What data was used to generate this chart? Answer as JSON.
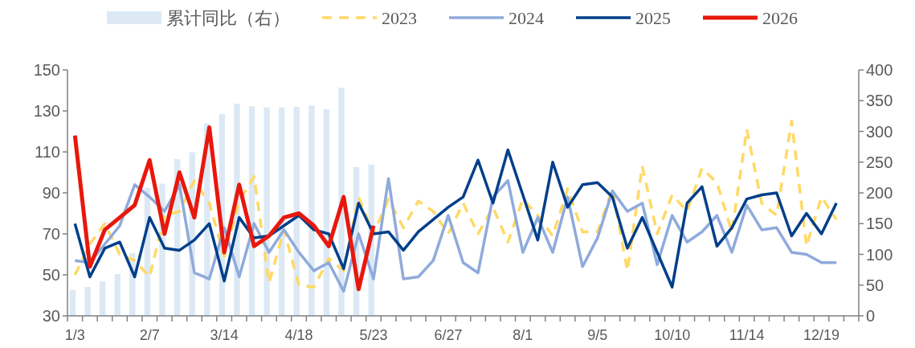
{
  "chart_data": {
    "type": "line",
    "categories": [
      "1/3",
      null,
      null,
      null,
      null,
      "2/7",
      null,
      null,
      null,
      null,
      "3/14",
      null,
      null,
      null,
      null,
      "4/18",
      null,
      null,
      null,
      null,
      "5/23",
      null,
      null,
      null,
      null,
      "6/27",
      null,
      null,
      null,
      null,
      "8/1",
      null,
      null,
      null,
      null,
      "9/5",
      null,
      null,
      null,
      null,
      "10/10",
      null,
      null,
      null,
      null,
      "11/14",
      null,
      null,
      null,
      null,
      "12/19",
      null,
      null
    ],
    "series": [
      {
        "name": "累计同比（右）",
        "type": "bar",
        "axis": "y2",
        "color": "#dce9f5",
        "values": [
          42,
          47,
          56,
          68,
          102,
          208,
          215,
          255,
          266,
          313,
          328,
          345,
          341,
          339,
          339,
          340,
          342,
          336,
          371,
          242,
          246,
          null,
          null,
          null,
          null,
          null,
          null,
          null,
          null,
          null,
          null,
          null,
          null,
          null,
          null,
          null,
          null,
          null,
          null,
          null,
          null,
          null,
          null,
          null,
          null,
          null,
          null,
          null,
          null,
          null,
          null,
          null,
          null
        ]
      },
      {
        "name": "2023",
        "color": "#ffd966",
        "line_style": "dashed",
        "values": [
          50,
          65,
          75,
          60,
          57,
          49,
          79,
          81,
          96,
          85,
          59,
          86,
          98,
          46,
          72,
          45,
          44,
          58,
          52,
          88,
          70,
          87,
          73,
          86,
          81,
          70,
          85,
          70,
          83,
          66,
          87,
          79,
          69,
          92,
          71,
          71,
          92,
          52,
          103,
          70,
          89,
          81,
          102,
          95,
          71,
          121,
          85,
          79,
          125,
          64,
          88,
          77,
          null
        ]
      },
      {
        "name": "2024",
        "color": "#8faadc",
        "line_style": "solid",
        "values": [
          57,
          56,
          65,
          74,
          94,
          88,
          81,
          94,
          51,
          48,
          73,
          49,
          75,
          61,
          72,
          61,
          52,
          56,
          42,
          70,
          48,
          97,
          48,
          49,
          57,
          79,
          56,
          51,
          88,
          96,
          61,
          78,
          61,
          88,
          54,
          68,
          91,
          81,
          85,
          55,
          79,
          66,
          71,
          79,
          61,
          84,
          72,
          73,
          61,
          60,
          56,
          56,
          null
        ]
      },
      {
        "name": "2025",
        "color": "#003f8a",
        "line_style": "solid",
        "values": [
          75,
          49,
          63,
          66,
          49,
          78,
          63,
          62,
          67,
          75,
          47,
          78,
          68,
          69,
          null,
          79,
          72,
          70,
          53,
          85,
          70,
          71,
          62,
          71,
          77,
          83,
          88,
          106,
          85,
          111,
          89,
          67,
          105,
          83,
          94,
          95,
          88,
          63,
          78,
          61,
          44,
          85,
          93,
          64,
          73,
          87,
          89,
          90,
          69,
          80,
          70,
          85,
          null
        ]
      },
      {
        "name": "2026",
        "color": "#e8180c",
        "line_style": "solid",
        "values": [
          118,
          54,
          72,
          78,
          84,
          106,
          70,
          100,
          78,
          122,
          61,
          94,
          64,
          69,
          78,
          80,
          74,
          64,
          88,
          43,
          74,
          null,
          null,
          null,
          null,
          null,
          null,
          null,
          null,
          null,
          null,
          null,
          null,
          null,
          null,
          null,
          null,
          null,
          null,
          null,
          null,
          null,
          null,
          null,
          null,
          null,
          null,
          null,
          null,
          null,
          null,
          null,
          null
        ]
      }
    ],
    "ylim": [
      30,
      150
    ],
    "yticks": [
      30,
      50,
      70,
      90,
      110,
      130,
      150
    ],
    "y2lim": [
      0,
      400
    ],
    "y2ticks": [
      0,
      50,
      100,
      150,
      200,
      250,
      300,
      350,
      400
    ],
    "legend": "top",
    "grid": false
  }
}
